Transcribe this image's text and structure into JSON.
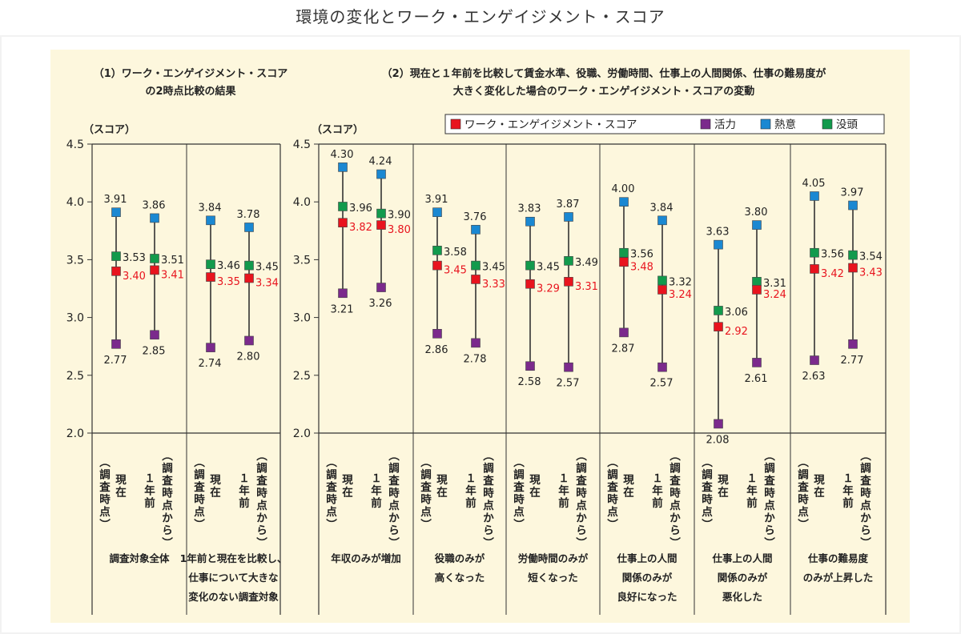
{
  "page_title": "環境の変化とワーク・エンゲイジメント・スコア",
  "panel1": {
    "title_line1": "（1）ワーク・エンゲイジメント・スコア",
    "title_line2": "の2時点比較の結果",
    "score_label": "（スコア）"
  },
  "panel2": {
    "title_line1": "（2）現在と１年前を比較して賃金水準、役職、労働時間、仕事上の人間関係、仕事の難易度が",
    "title_line2": "大きく変化した場合のワーク・エンゲイジメント・スコアの変動",
    "score_label": "（スコア）"
  },
  "colors": {
    "panel_bg": "#fdf7dd",
    "red": "#e8141e",
    "purple": "#7b2a8c",
    "blue": "#1a88d2",
    "green": "#129a4c"
  },
  "chart_data": {
    "type": "scatter",
    "ylim": [
      2.0,
      4.5
    ],
    "yticks": [
      "4.5",
      "4.0",
      "3.5",
      "3.0",
      "2.5",
      "2.0"
    ],
    "legend": [
      {
        "name": "ワーク・エンゲイジメント・スコア",
        "color": "#e8141e"
      },
      {
        "name": "活力",
        "color": "#7b2a8c"
      },
      {
        "name": "熱意",
        "color": "#1a88d2"
      },
      {
        "name": "没頭",
        "color": "#129a4c"
      }
    ],
    "time_label_current": "現在（調査時点）",
    "time_label_past": "１年前（調査時点から）",
    "groups": [
      {
        "panel": 1,
        "category_lines": [
          "調査対象全体"
        ],
        "points": [
          {
            "we": 3.4,
            "we_label": "3.40",
            "vigor": 2.77,
            "vigor_label": "2.77",
            "ded": 3.91,
            "ded_label": "3.91",
            "abs": 3.53,
            "abs_label": "3.53"
          },
          {
            "we": 3.41,
            "we_label": "3.41",
            "vigor": 2.85,
            "vigor_label": "2.85",
            "ded": 3.86,
            "ded_label": "3.86",
            "abs": 3.51,
            "abs_label": "3.51"
          }
        ]
      },
      {
        "panel": 1,
        "category_lines": [
          "1年前と現在を比較し、",
          "仕事について大きな",
          "変化のない調査対象"
        ],
        "points": [
          {
            "we": 3.35,
            "we_label": "3.35",
            "vigor": 2.74,
            "vigor_label": "2.74",
            "ded": 3.84,
            "ded_label": "3.84",
            "abs": 3.46,
            "abs_label": "3.46"
          },
          {
            "we": 3.34,
            "we_label": "3.34",
            "vigor": 2.8,
            "vigor_label": "2.80",
            "ded": 3.78,
            "ded_label": "3.78",
            "abs": 3.45,
            "abs_label": "3.45"
          }
        ]
      },
      {
        "panel": 2,
        "category_lines": [
          "年収のみが増加"
        ],
        "points": [
          {
            "we": 3.82,
            "we_label": "3.82",
            "vigor": 3.21,
            "vigor_label": "3.21",
            "ded": 4.3,
            "ded_label": "4.30",
            "abs": 3.96,
            "abs_label": "3.96"
          },
          {
            "we": 3.8,
            "we_label": "3.80",
            "vigor": 3.26,
            "vigor_label": "3.26",
            "ded": 4.24,
            "ded_label": "4.24",
            "abs": 3.9,
            "abs_label": "3.90"
          }
        ]
      },
      {
        "panel": 2,
        "category_lines": [
          "役職のみが",
          "高くなった"
        ],
        "points": [
          {
            "we": 3.45,
            "we_label": "3.45",
            "vigor": 2.86,
            "vigor_label": "2.86",
            "ded": 3.91,
            "ded_label": "3.91",
            "abs": 3.58,
            "abs_label": "3.58"
          },
          {
            "we": 3.33,
            "we_label": "3.33",
            "vigor": 2.78,
            "vigor_label": "2.78",
            "ded": 3.76,
            "ded_label": "3.76",
            "abs": 3.45,
            "abs_label": "3.45"
          }
        ]
      },
      {
        "panel": 2,
        "category_lines": [
          "労働時間のみが",
          "短くなった"
        ],
        "points": [
          {
            "we": 3.29,
            "we_label": "3.29",
            "vigor": 2.58,
            "vigor_label": "2.58",
            "ded": 3.83,
            "ded_label": "3.83",
            "abs": 3.45,
            "abs_label": "3.45"
          },
          {
            "we": 3.31,
            "we_label": "3.31",
            "vigor": 2.57,
            "vigor_label": "2.57",
            "ded": 3.87,
            "ded_label": "3.87",
            "abs": 3.49,
            "abs_label": "3.49"
          }
        ]
      },
      {
        "panel": 2,
        "category_lines": [
          "仕事上の人間",
          "関係のみが",
          "良好になった"
        ],
        "points": [
          {
            "we": 3.48,
            "we_label": "3.48",
            "vigor": 2.87,
            "vigor_label": "2.87",
            "ded": 4.0,
            "ded_label": "4.00",
            "abs": 3.56,
            "abs_label": "3.56"
          },
          {
            "we": 3.24,
            "we_label": "3.24",
            "vigor": 2.57,
            "vigor_label": "2.57",
            "ded": 3.84,
            "ded_label": "3.84",
            "abs": 3.32,
            "abs_label": "3.32"
          }
        ]
      },
      {
        "panel": 2,
        "category_lines": [
          "仕事上の人間",
          "関係のみが",
          "悪化した"
        ],
        "points": [
          {
            "we": 2.92,
            "we_label": "2.92",
            "vigor": 2.08,
            "vigor_label": "2.08",
            "ded": 3.63,
            "ded_label": "3.63",
            "abs": 3.06,
            "abs_label": "3.06"
          },
          {
            "we": 3.24,
            "we_label": "3.24",
            "vigor": 2.61,
            "vigor_label": "2.61",
            "ded": 3.8,
            "ded_label": "3.80",
            "abs": 3.31,
            "abs_label": "3.31"
          }
        ]
      },
      {
        "panel": 2,
        "category_lines": [
          "仕事の難易度",
          "のみが上昇した"
        ],
        "points": [
          {
            "we": 3.42,
            "we_label": "3.42",
            "vigor": 2.63,
            "vigor_label": "2.63",
            "ded": 4.05,
            "ded_label": "4.05",
            "abs": 3.56,
            "abs_label": "3.56"
          },
          {
            "we": 3.43,
            "we_label": "3.43",
            "vigor": 2.77,
            "vigor_label": "2.77",
            "ded": 3.97,
            "ded_label": "3.97",
            "abs": 3.54,
            "abs_label": "3.54"
          }
        ]
      }
    ]
  }
}
